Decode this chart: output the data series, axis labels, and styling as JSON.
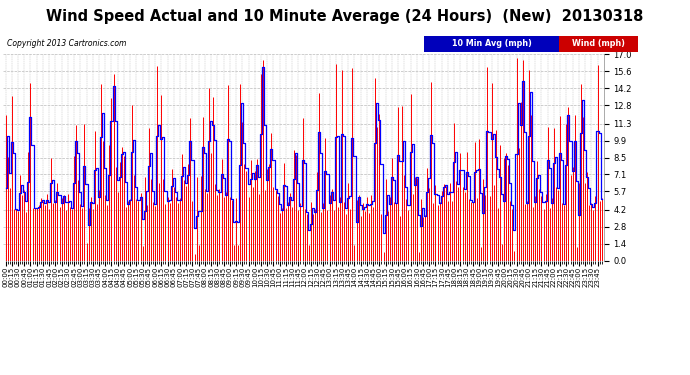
{
  "title": "Wind Speed Actual and 10 Minute Average (24 Hours)  (New)  20130318",
  "copyright": "Copyright 2013 Cartronics.com",
  "legend_avg_label": "10 Min Avg (mph)",
  "legend_wind_label": "Wind (mph)",
  "legend_avg_bg": "#0000bb",
  "legend_wind_bg": "#cc0000",
  "yticks": [
    0.0,
    1.4,
    2.8,
    4.2,
    5.7,
    7.1,
    8.5,
    9.9,
    11.3,
    12.8,
    14.2,
    15.6,
    17.0
  ],
  "ymin": 0.0,
  "ymax": 17.0,
  "bar_color": "#ff0000",
  "dark_bar_color": "#333333",
  "avg_line_color": "#0000ff",
  "grid_color": "#bbbbbb",
  "bg_color": "#ffffff",
  "tick_label_size": 6,
  "title_fontsize": 10.5,
  "n_points": 288,
  "seed": 42
}
